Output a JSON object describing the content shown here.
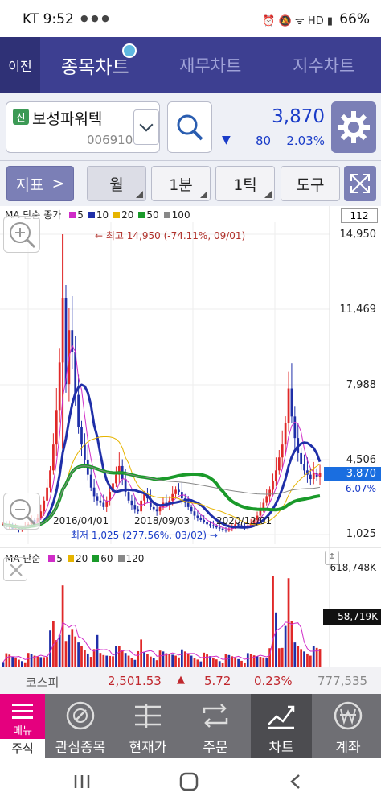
{
  "status": {
    "left": "KT 9:52",
    "battery": "66%"
  },
  "header": {
    "back": "이전",
    "tabs": [
      "종목차트",
      "재무차트",
      "지수차트"
    ]
  },
  "stock": {
    "badge": "신",
    "name": "보성파워텍",
    "code": "006910",
    "price": "3,870",
    "change": "80",
    "rate": "2.03%"
  },
  "toolbar": {
    "indicator": "지표",
    "period": "월",
    "minute": "1분",
    "tick": "1틱",
    "tools": "도구"
  },
  "chart": {
    "ma_label": "MA 단순 종가",
    "ma_legend": [
      "5",
      "10",
      "20",
      "50",
      "100"
    ],
    "ma_colors": [
      "#d02cc8",
      "#1f2fa8",
      "#e6b400",
      "#1a9a2a",
      "#888888"
    ],
    "count": "112",
    "y_ticks": [
      "14,950",
      "11,469",
      "7,988",
      "4,506",
      "1,025"
    ],
    "current": "3,870",
    "current_rate": "-6.07%",
    "high_label": "← 최고 14,950 (-74.11%, 09/01)",
    "low_label": "최저 1,025 (277.56%, 03/02) →",
    "x_dates": [
      "2016/04/01",
      "2018/09/03",
      "2020/12/01"
    ]
  },
  "volume": {
    "label": "MA 단순",
    "legend": [
      "5",
      "20",
      "60",
      "120"
    ],
    "legend_colors": [
      "#d02cc8",
      "#e6b400",
      "#1a9a2a",
      "#888888"
    ],
    "max": "618,748K",
    "current": "58,719K"
  },
  "index": {
    "name": "코스피",
    "value": "2,501.53",
    "change": "5.72",
    "rate": "0.23%",
    "volume": "777,535"
  },
  "nav": {
    "menu": "메뉴",
    "menu_sub": "주식",
    "items": [
      "관심종목",
      "현재가",
      "주문",
      "차트",
      "계좌"
    ]
  }
}
